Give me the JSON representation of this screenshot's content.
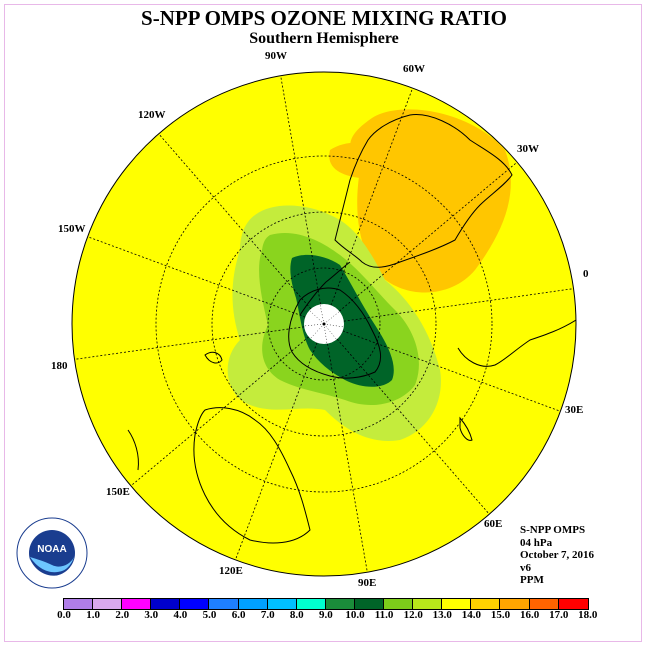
{
  "title": "S-NPP OMPS OZONE MIXING RATIO",
  "subtitle": "Southern Hemisphere",
  "longitude_labels": [
    "90W",
    "60W",
    "30W",
    "0",
    "30E",
    "60E",
    "90E",
    "120E",
    "150E",
    "180",
    "150W",
    "120W"
  ],
  "info": {
    "instrument": "S-NPP OMPS",
    "level": "04 hPa",
    "date": "October 7, 2016",
    "version": "v6",
    "units": "PPM"
  },
  "colorbar": {
    "ticks": [
      "0.0",
      "1.0",
      "2.0",
      "3.0",
      "4.0",
      "5.0",
      "6.0",
      "7.0",
      "8.0",
      "9.0",
      "10.0",
      "11.0",
      "12.0",
      "13.0",
      "14.0",
      "15.0",
      "16.0",
      "17.0",
      "18.0"
    ],
    "colors": [
      "#b07ee8",
      "#d9a8ee",
      "#ff00ff",
      "#0000cd",
      "#0000ff",
      "#1e7fff",
      "#00a0ff",
      "#00c0ff",
      "#00ffd0",
      "#1a8c3a",
      "#006428",
      "#7ccc1a",
      "#b8e81a",
      "#ffff00",
      "#ffd200",
      "#ffa500",
      "#ff6400",
      "#ff0000",
      "#8b5a3c"
    ]
  },
  "logo_text": "NOAA",
  "colors": {
    "background_field": "#ffff00",
    "orange_field": "#ffc600",
    "light_green": "#c4ec3c",
    "mid_green": "#8ad41e",
    "dark_green": "#006428"
  }
}
